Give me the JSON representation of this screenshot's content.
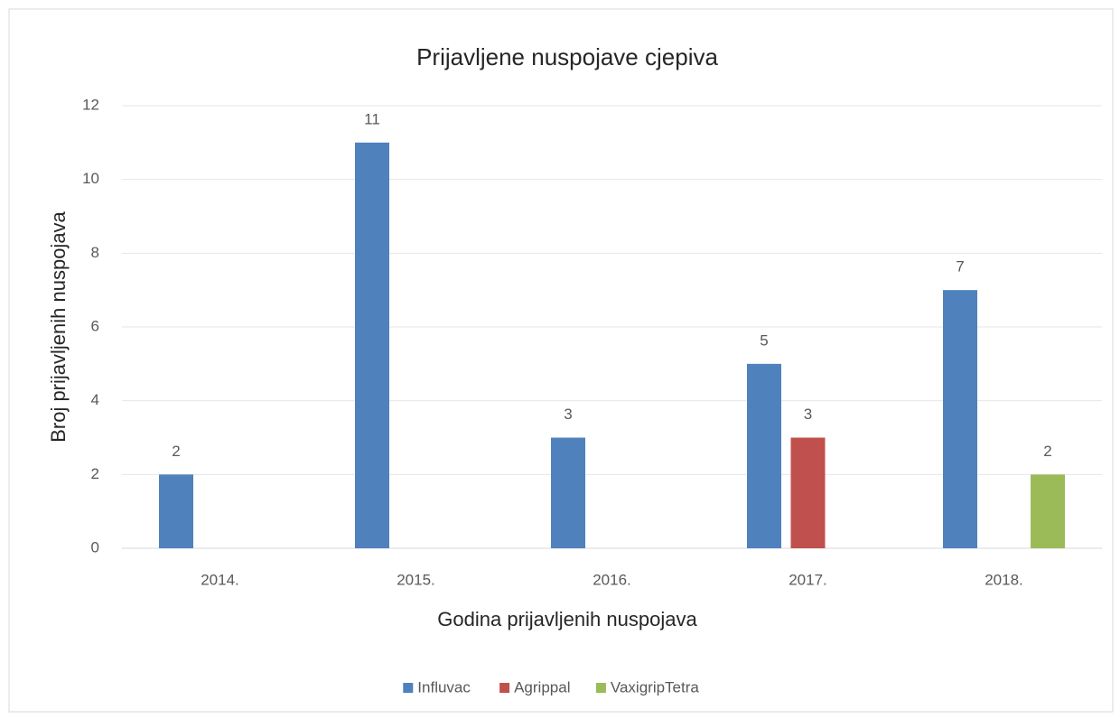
{
  "chart_data": {
    "type": "bar",
    "title": "Prijavljene nuspojave cjepiva",
    "x_label": "Godina prijavljenih nuspojava",
    "y_label": "Broj prijavljenih nuspojava",
    "categories": [
      "2014.",
      "2015.",
      "2016.",
      "2017.",
      "2018."
    ],
    "series": [
      {
        "name": "Influvac",
        "color": "#4f81bd",
        "values": [
          2,
          11,
          3,
          5,
          7
        ]
      },
      {
        "name": "Agrippal",
        "color": "#c0504d",
        "values": [
          null,
          null,
          null,
          3,
          null
        ]
      },
      {
        "name": "VaxigripTetra",
        "color": "#9bbb59",
        "values": [
          null,
          null,
          null,
          null,
          2
        ]
      }
    ],
    "ylim": [
      0,
      12
    ],
    "yticks": [
      0,
      2,
      4,
      6,
      8,
      10,
      12
    ],
    "grid": true,
    "legend": "bottom"
  }
}
